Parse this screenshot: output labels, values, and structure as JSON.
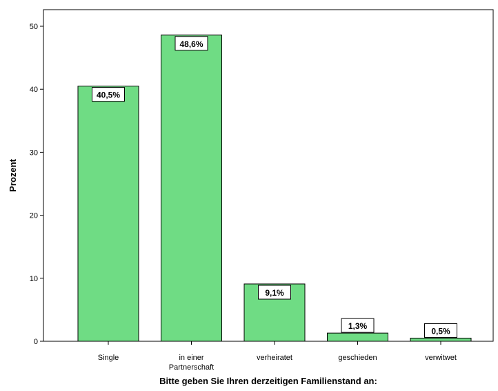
{
  "chart_data": {
    "type": "bar",
    "categories": [
      [
        "Single"
      ],
      [
        "in einer",
        "Partnerschaft"
      ],
      [
        "verheiratet"
      ],
      [
        "geschieden"
      ],
      [
        "verwitwet"
      ]
    ],
    "values": [
      40.5,
      48.6,
      9.1,
      1.3,
      0.5
    ],
    "data_labels": [
      "40,5%",
      "48,6%",
      "9,1%",
      "1,3%",
      "0,5%"
    ],
    "xlabel": "Bitte geben Sie Ihren derzeitigen Familienstand an:",
    "ylabel": "Prozent",
    "yticks": [
      0,
      10,
      20,
      30,
      40,
      50
    ],
    "ylim": [
      0,
      52.5
    ],
    "grid": false,
    "colors": {
      "bar": "#6fdc84",
      "bar_stroke": "#000000",
      "label_bg": "#ffffff"
    }
  }
}
